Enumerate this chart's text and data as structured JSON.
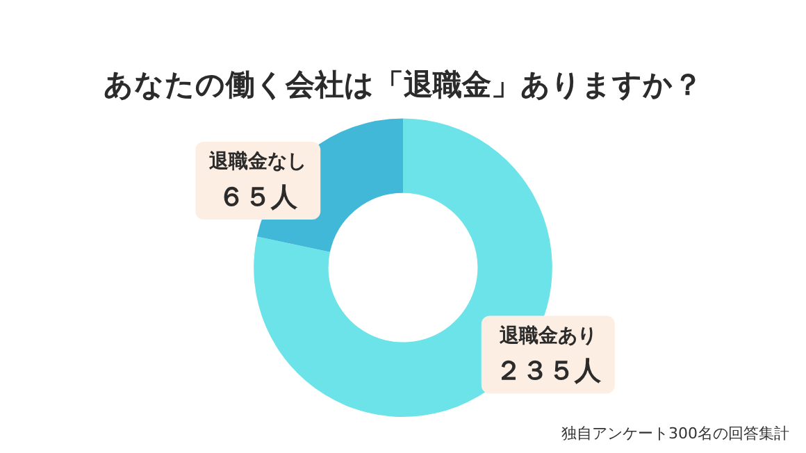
{
  "chart_data": {
    "type": "donut",
    "title": "あなたの働く会社は「退職金」ありますか？",
    "categories": [
      "退職金あり",
      "退職金なし"
    ],
    "values": [
      235,
      65
    ],
    "colors": [
      "#6ce3e8",
      "#42b8d8"
    ],
    "value_labels": [
      "２３５人",
      "６５人"
    ],
    "annotations": [
      "独自アンケート300名の回答集計"
    ]
  }
}
